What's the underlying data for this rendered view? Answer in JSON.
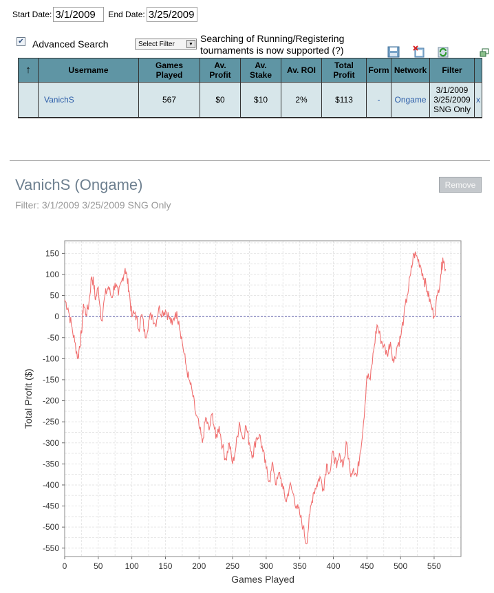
{
  "dates": {
    "start_label": "Start Date:",
    "start_value": "3/1/2009",
    "end_label": "End Date:",
    "end_value": "3/25/2009"
  },
  "advanced": {
    "checked": true,
    "label": "Advanced Search",
    "select_value": "Select Filter",
    "note_line1": "Searching of Running/Registering",
    "note_line2": "tournaments is now supported (?)"
  },
  "toolbar": {
    "icons": [
      "save-icon",
      "delete-icon",
      "refresh-icon",
      "popout-icon"
    ]
  },
  "table": {
    "headers": {
      "sort": "↑",
      "username": "Username",
      "games_played": [
        "Games",
        "Played"
      ],
      "av_profit": [
        "Av.",
        "Profit"
      ],
      "av_stake": [
        "Av.",
        "Stake"
      ],
      "av_roi": "Av. ROI",
      "total_profit": [
        "Total",
        "Profit"
      ],
      "form": "Form",
      "network": "Network",
      "filter": "Filter"
    },
    "row": {
      "username": "VanichS",
      "games_played": "567",
      "av_profit": "$0",
      "av_stake": "$10",
      "av_roi": "2%",
      "total_profit": "$113",
      "form": "-",
      "network": "Ongame",
      "filter_lines": [
        "3/1/2009",
        "3/25/2009",
        "SNG Only"
      ],
      "remove": "x"
    }
  },
  "detail": {
    "title": "VanichS (Ongame)",
    "filter": "Filter: 3/1/2009 3/25/2009 SNG Only",
    "remove_button": "Remove"
  },
  "colors": {
    "header_bg": "#5f95a4",
    "row_bg": "#d7e6ea",
    "line": "#f07070",
    "zero_line": "#5a5aa8",
    "link": "#2a5ca8"
  },
  "chart_data": {
    "type": "line",
    "xlabel": "Games Played",
    "ylabel": "Total Profit ($)",
    "xlim": [
      0,
      590
    ],
    "ylim": [
      -570,
      180
    ],
    "xticks": [
      0,
      50,
      100,
      150,
      200,
      250,
      300,
      350,
      400,
      450,
      500,
      550
    ],
    "yticks": [
      150,
      100,
      50,
      0,
      -50,
      -100,
      -150,
      -200,
      -250,
      -300,
      -350,
      -400,
      -450,
      -500,
      -550
    ],
    "grid": true,
    "zero_line": true,
    "series": [
      {
        "x": [
          0,
          5,
          10,
          15,
          20,
          22,
          25,
          28,
          32,
          36,
          40,
          43,
          46,
          50,
          55,
          60,
          65,
          70,
          75,
          80,
          85,
          90,
          93,
          96,
          100,
          105,
          110,
          115,
          120,
          125,
          130,
          135,
          140,
          145,
          150,
          155,
          160,
          165,
          170,
          175,
          180,
          185,
          190,
          195,
          200,
          205,
          210,
          215,
          220,
          225,
          230,
          235,
          240,
          245,
          250,
          255,
          260,
          265,
          270,
          275,
          280,
          285,
          290,
          295,
          300,
          305,
          310,
          315,
          320,
          325,
          330,
          335,
          340,
          345,
          350,
          355,
          360,
          365,
          370,
          375,
          380,
          385,
          390,
          395,
          400,
          405,
          410,
          415,
          420,
          425,
          430,
          435,
          440,
          445,
          450,
          455,
          460,
          465,
          470,
          475,
          480,
          485,
          490,
          495,
          500,
          505,
          510,
          515,
          520,
          525,
          530,
          535,
          540,
          545,
          550,
          555,
          560,
          563,
          567
        ],
        "y": [
          40,
          20,
          -20,
          -60,
          -100,
          -70,
          -40,
          30,
          5,
          30,
          95,
          80,
          40,
          70,
          -10,
          50,
          70,
          45,
          80,
          50,
          85,
          115,
          90,
          60,
          0,
          10,
          -30,
          5,
          -50,
          -10,
          5,
          -20,
          20,
          10,
          15,
          0,
          -20,
          10,
          -10,
          -60,
          -110,
          -150,
          -180,
          -230,
          -260,
          -300,
          -240,
          -270,
          -230,
          -290,
          -260,
          -310,
          -340,
          -300,
          -350,
          -310,
          -250,
          -290,
          -260,
          -300,
          -330,
          -290,
          -280,
          -320,
          -360,
          -390,
          -350,
          -400,
          -370,
          -410,
          -440,
          -400,
          -420,
          -450,
          -470,
          -500,
          -540,
          -470,
          -420,
          -400,
          -380,
          -410,
          -350,
          -370,
          -320,
          -360,
          -330,
          -350,
          -300,
          -370,
          -360,
          -380,
          -320,
          -250,
          -140,
          -150,
          -80,
          -20,
          -50,
          -70,
          -90,
          -60,
          -110,
          -70,
          -50,
          0,
          50,
          100,
          150,
          140,
          120,
          90,
          60,
          30,
          0,
          50,
          100,
          140,
          113
        ]
      }
    ]
  }
}
